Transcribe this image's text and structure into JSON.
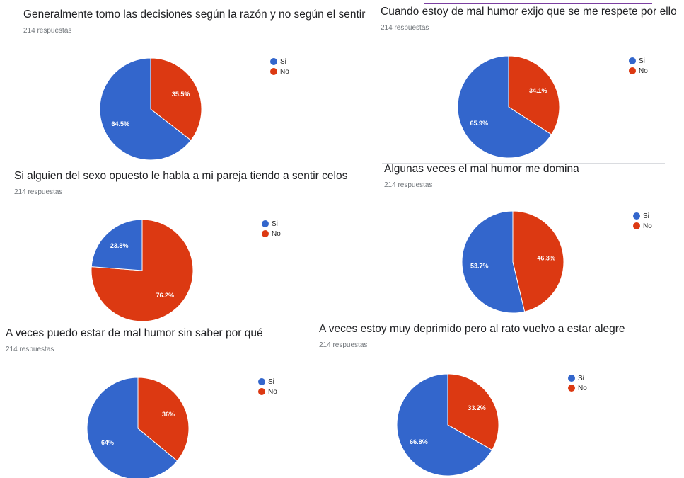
{
  "colors": {
    "si": "#3366cc",
    "no": "#dc3912",
    "title": "#202124",
    "count": "#70757a"
  },
  "chart_data": [
    {
      "type": "pie",
      "title": "Generalmente tomo las decisiones según la razón y no según el sentir",
      "subtitle": "214 respuestas",
      "legend_position": "right",
      "slices": [
        {
          "label": "Si",
          "value": 64.5,
          "display": "64.5%",
          "color": "#3366cc"
        },
        {
          "label": "No",
          "value": 35.5,
          "display": "35.5%",
          "color": "#dc3912"
        }
      ]
    },
    {
      "type": "pie",
      "title": "Cuando estoy de mal humor exijo que se me respete por ello",
      "subtitle": "214 respuestas",
      "legend_position": "right",
      "slices": [
        {
          "label": "Si",
          "value": 65.9,
          "display": "65.9%",
          "color": "#3366cc"
        },
        {
          "label": "No",
          "value": 34.1,
          "display": "34.1%",
          "color": "#dc3912"
        }
      ]
    },
    {
      "type": "pie",
      "title": "Si alguien del sexo opuesto le habla a mi pareja tiendo a sentir celos",
      "subtitle": "214 respuestas",
      "legend_position": "right",
      "slices": [
        {
          "label": "Si",
          "value": 23.8,
          "display": "23.8%",
          "color": "#3366cc"
        },
        {
          "label": "No",
          "value": 76.2,
          "display": "76.2%",
          "color": "#dc3912"
        }
      ]
    },
    {
      "type": "pie",
      "title": "Algunas veces el mal humor me domina",
      "subtitle": "214 respuestas",
      "legend_position": "right",
      "slices": [
        {
          "label": "Si",
          "value": 53.7,
          "display": "53.7%",
          "color": "#3366cc"
        },
        {
          "label": "No",
          "value": 46.3,
          "display": "46.3%",
          "color": "#dc3912"
        }
      ]
    },
    {
      "type": "pie",
      "title": "A veces puedo estar de mal humor sin saber por qué",
      "subtitle": "214 respuestas",
      "legend_position": "right",
      "slices": [
        {
          "label": "Si",
          "value": 64,
          "display": "64%",
          "color": "#3366cc"
        },
        {
          "label": "No",
          "value": 36,
          "display": "36%",
          "color": "#dc3912"
        }
      ]
    },
    {
      "type": "pie",
      "title": "A veces estoy muy deprimido pero al rato vuelvo a estar alegre",
      "subtitle": "214 respuestas",
      "legend_position": "right",
      "slices": [
        {
          "label": "Si",
          "value": 66.8,
          "display": "66.8%",
          "color": "#3366cc"
        },
        {
          "label": "No",
          "value": 33.2,
          "display": "33.2%",
          "color": "#dc3912"
        }
      ]
    }
  ]
}
